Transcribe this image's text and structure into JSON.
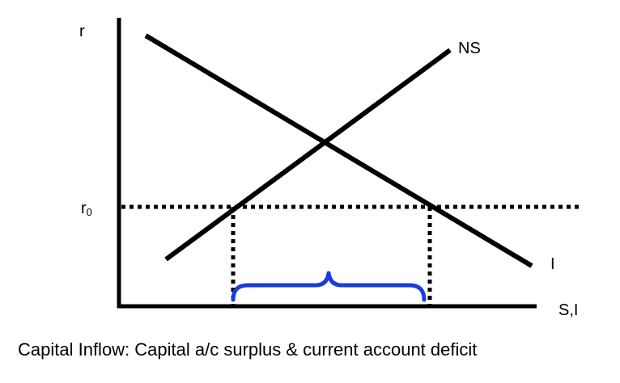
{
  "diagram": {
    "y_axis_label": "r",
    "x_axis_label": "S,I",
    "rate_label_main": "r",
    "rate_label_sub": "0",
    "supply_curve_label": "NS",
    "demand_curve_label": "I",
    "caption": "Capital Inflow: Capital a/c surplus & current account deficit"
  },
  "colors": {
    "lines": "#000000",
    "brace": "#1a3be0",
    "background": "#ffffff"
  }
}
